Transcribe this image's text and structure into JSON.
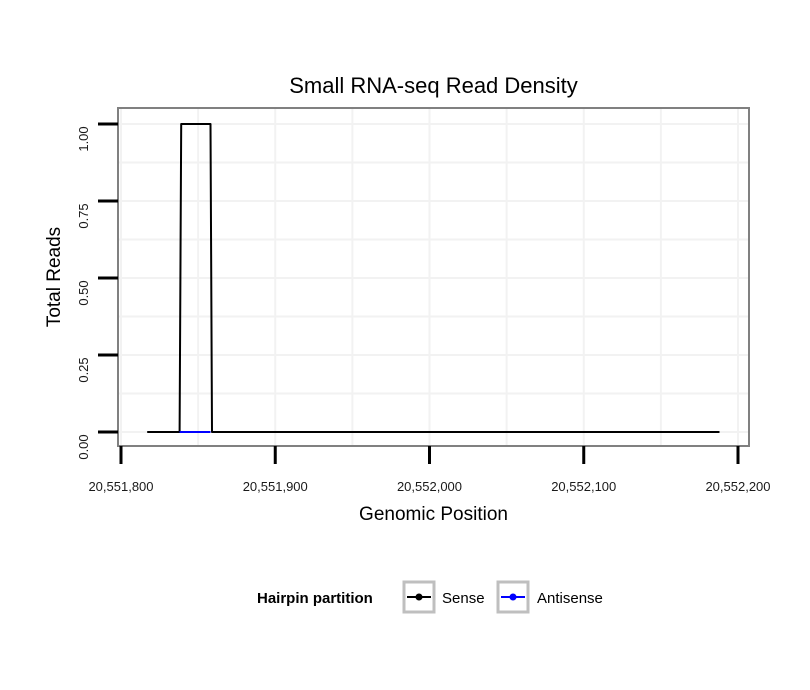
{
  "chart_data": {
    "type": "line",
    "title": "Small RNA-seq Read Density",
    "xlabel": "Genomic Position",
    "ylabel": "Total Reads",
    "xlim": [
      20551800,
      20552200
    ],
    "ylim": [
      0,
      1.0
    ],
    "x_ticks": [
      20551800,
      20551900,
      20552000,
      20552100,
      20552200
    ],
    "x_tick_labels": [
      "20,551,800",
      "20,551,900",
      "20,552,000",
      "20,552,100",
      "20,552,200"
    ],
    "y_ticks": [
      0,
      0.25,
      0.5,
      0.75,
      1.0
    ],
    "y_tick_labels": [
      "0.00",
      "0.25",
      "0.50",
      "0.75",
      "1.00"
    ],
    "grid": true,
    "legend": {
      "title": "Hairpin partition",
      "placement": "bottom"
    },
    "series": [
      {
        "name": "Sense",
        "color": "#000000",
        "x": [
          20551817,
          20551838,
          20551839,
          20551858,
          20551859,
          20552188
        ],
        "y": [
          0,
          0,
          1,
          1,
          0,
          0
        ]
      },
      {
        "name": "Antisense",
        "color": "#0000ff",
        "x": [
          20551838,
          20551858
        ],
        "y": [
          0,
          0
        ]
      }
    ]
  }
}
